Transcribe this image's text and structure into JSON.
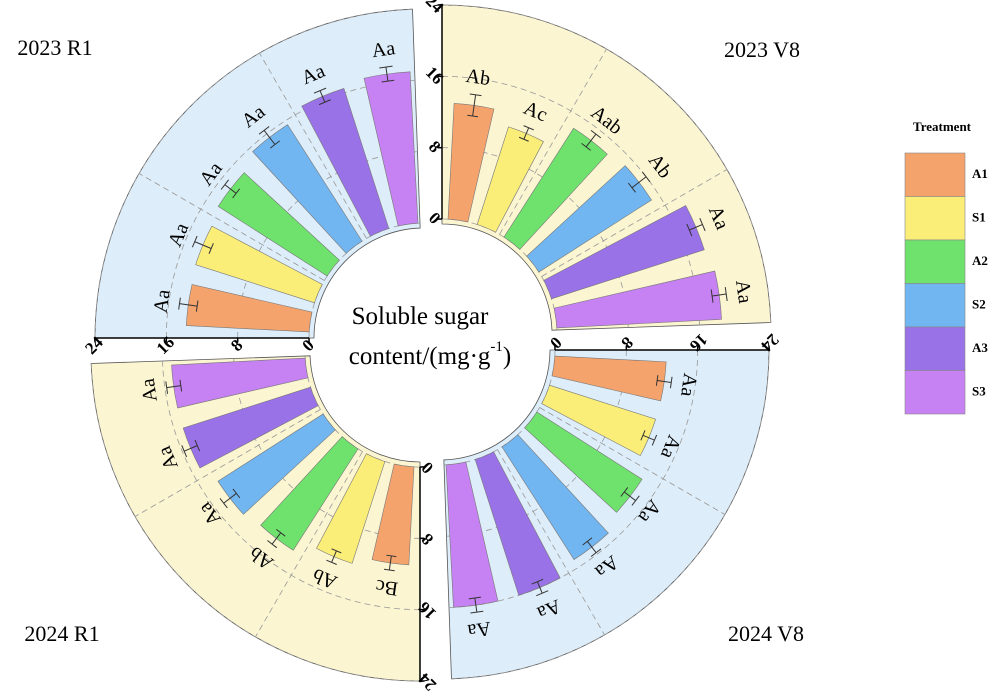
{
  "chart_data": [
    {
      "type": "polar_bar",
      "title": "2023 R1",
      "values": [
        13.8,
        14,
        14.5,
        15.5,
        16.5,
        17
      ],
      "errors": [
        1,
        1,
        0.8,
        1,
        0.7,
        0.8
      ],
      "letters": [
        "Aa",
        "Aa",
        "Aa",
        "Aa",
        "Aa",
        "Aa"
      ],
      "ylim": [
        0,
        24
      ],
      "yticks": [
        0,
        8,
        16,
        24
      ],
      "background": "#ddedf9",
      "grid": true
    },
    {
      "type": "polar_bar",
      "title": "2023 V8",
      "values": [
        13,
        11.5,
        14.5,
        15,
        18,
        18.5
      ],
      "errors": [
        1.2,
        0.7,
        0.9,
        1,
        0.8,
        0.8
      ],
      "letters": [
        "Ab",
        "Ac",
        "Aab",
        "Ab",
        "Aa",
        "Aa"
      ],
      "ylim": [
        0,
        24
      ],
      "yticks": [
        0,
        8,
        16,
        24
      ],
      "background": "#fbf5d2",
      "grid": true
    },
    {
      "type": "polar_bar",
      "title": "2024 V8",
      "values": [
        12.5,
        12.5,
        14,
        15,
        16,
        16
      ],
      "errors": [
        0.8,
        0.7,
        0.8,
        0.8,
        0.7,
        0.8
      ],
      "letters": [
        "Aa",
        "Aa",
        "Aa",
        "Aa",
        "Aa",
        "Aa"
      ],
      "ylim": [
        0,
        24
      ],
      "yticks": [
        0,
        8,
        16,
        24
      ],
      "background": "#ddedf9",
      "grid": true
    },
    {
      "type": "polar_bar",
      "title": "2024 R1",
      "values": [
        11,
        12,
        13.5,
        14,
        15,
        15
      ],
      "errors": [
        0.8,
        0.7,
        0.8,
        0.9,
        0.8,
        0.8
      ],
      "letters": [
        "Bc",
        "Ab",
        "Ab",
        "Aa",
        "Aa",
        "Aa"
      ],
      "ylim": [
        0,
        24
      ],
      "yticks": [
        0,
        8,
        16,
        24
      ],
      "background": "#fbf5d2",
      "grid": true
    }
  ],
  "legend": {
    "title": "Treatment",
    "categories": [
      "A1",
      "S1",
      "A2",
      "S2",
      "A3",
      "S3"
    ],
    "colors": [
      "#f5a36c",
      "#fbee78",
      "#6fe26d",
      "#72b6f1",
      "#9a72e8",
      "#c681f2"
    ]
  },
  "center_label": {
    "line1": "Soluble sugar",
    "line2": "content/(mg·g",
    "superscript": "-1",
    "close": ")"
  }
}
